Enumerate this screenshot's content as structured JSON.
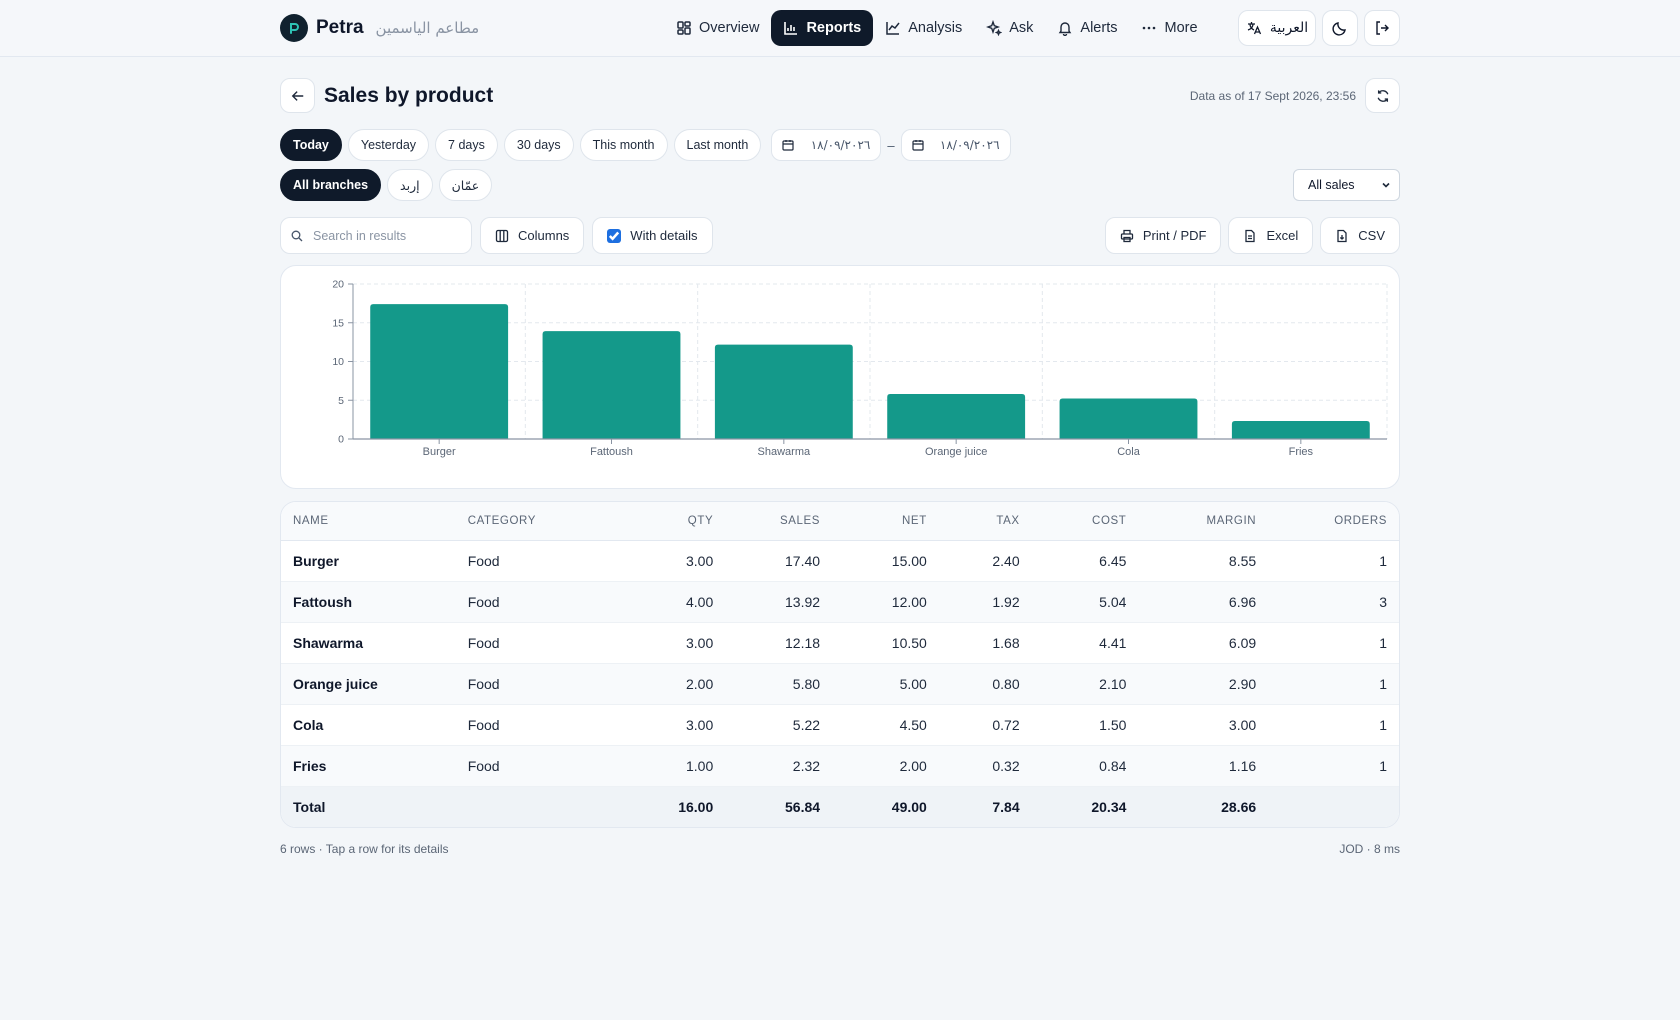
{
  "brand": {
    "name": "Petra",
    "subtitle": "مطاعم الياسمين"
  },
  "nav": [
    {
      "label": "Overview",
      "icon": "grid-icon",
      "active": false
    },
    {
      "label": "Reports",
      "icon": "bar-chart-icon",
      "active": true
    },
    {
      "label": "Analysis",
      "icon": "line-chart-icon",
      "active": false
    },
    {
      "label": "Ask",
      "icon": "sparkle-icon",
      "active": false
    },
    {
      "label": "Alerts",
      "icon": "bell-icon",
      "active": false
    },
    {
      "label": "More",
      "icon": "dots-icon",
      "active": false
    }
  ],
  "topbar": {
    "language_label": "العربية"
  },
  "page": {
    "title": "Sales by product",
    "data_as_of": "Data as of 17 Sept 2026, 23:56"
  },
  "date_filters": {
    "options": [
      "Today",
      "Yesterday",
      "7 days",
      "30 days",
      "This month",
      "Last month"
    ],
    "selected": "Today",
    "from": "١٨/٠٩/٢٠٢٦",
    "to": "١٨/٠٩/٢٠٢٦",
    "separator": "–"
  },
  "branches": {
    "options": [
      "All branches",
      "إربد",
      "عمّان"
    ],
    "selected": "All branches"
  },
  "sales_filter": {
    "selected": "All sales"
  },
  "toolbar": {
    "search_placeholder": "Search in results",
    "columns_label": "Columns",
    "with_details_label": "With details",
    "with_details_checked": true,
    "print_label": "Print / PDF",
    "excel_label": "Excel",
    "csv_label": "CSV"
  },
  "chart_data": {
    "type": "bar",
    "categories": [
      "Burger",
      "Fattoush",
      "Shawarma",
      "Orange juice",
      "Cola",
      "Fries"
    ],
    "values": [
      17.4,
      13.92,
      12.18,
      5.8,
      5.22,
      2.32
    ],
    "ylim": [
      0,
      20
    ],
    "yticks": [
      0,
      5,
      10,
      15,
      20
    ],
    "grid": true,
    "color": "#14998a",
    "title": "",
    "xlabel": "",
    "ylabel": ""
  },
  "table": {
    "columns": [
      "NAME",
      "CATEGORY",
      "QTY",
      "SALES",
      "NET",
      "TAX",
      "COST",
      "MARGIN",
      "ORDERS"
    ],
    "rows": [
      [
        "Burger",
        "Food",
        "3.00",
        "17.40",
        "15.00",
        "2.40",
        "6.45",
        "8.55",
        "1"
      ],
      [
        "Fattoush",
        "Food",
        "4.00",
        "13.92",
        "12.00",
        "1.92",
        "5.04",
        "6.96",
        "3"
      ],
      [
        "Shawarma",
        "Food",
        "3.00",
        "12.18",
        "10.50",
        "1.68",
        "4.41",
        "6.09",
        "1"
      ],
      [
        "Orange juice",
        "Food",
        "2.00",
        "5.80",
        "5.00",
        "0.80",
        "2.10",
        "2.90",
        "1"
      ],
      [
        "Cola",
        "Food",
        "3.00",
        "5.22",
        "4.50",
        "0.72",
        "1.50",
        "3.00",
        "1"
      ],
      [
        "Fries",
        "Food",
        "1.00",
        "2.32",
        "2.00",
        "0.32",
        "0.84",
        "1.16",
        "1"
      ]
    ],
    "total": [
      "Total",
      "",
      "16.00",
      "56.84",
      "49.00",
      "7.84",
      "20.34",
      "28.66",
      ""
    ]
  },
  "footer": {
    "rows_note": "6 rows · Tap a row for its details",
    "meta": "JOD · 8 ms"
  },
  "colors": {
    "accent": "#14998a",
    "dark": "#0f1a2a",
    "checkbox": "#1d6fe0"
  }
}
